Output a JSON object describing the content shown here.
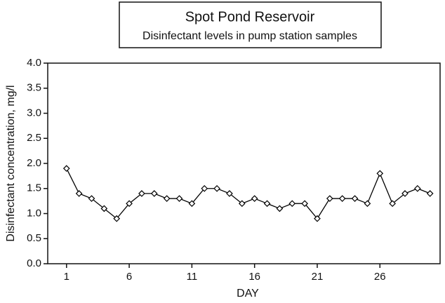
{
  "chart_data": {
    "type": "line",
    "title": "Spot Pond Reservoir",
    "subtitle": "Disinfectant levels in pump station samples",
    "x_label": "DAY",
    "y_label": "Disinfectant concentration, mg/l",
    "x": [
      1,
      2,
      3,
      4,
      5,
      6,
      7,
      8,
      9,
      10,
      11,
      12,
      13,
      14,
      15,
      16,
      17,
      18,
      19,
      20,
      21,
      22,
      23,
      24,
      25,
      26,
      27,
      28,
      29,
      30
    ],
    "series": [
      {
        "color": "#000000",
        "values": [
          1.9,
          1.4,
          1.3,
          1.1,
          0.9,
          1.2,
          1.4,
          1.4,
          1.3,
          1.3,
          1.2,
          1.5,
          1.5,
          1.4,
          1.2,
          1.3,
          1.2,
          1.1,
          1.2,
          1.2,
          0.9,
          1.3,
          1.3,
          1.3,
          1.2,
          1.8,
          1.2,
          1.4,
          1.5,
          1.4
        ]
      }
    ],
    "xlim": [
      -0.5,
      30.8
    ],
    "xticks": [
      1,
      6,
      11,
      16,
      21,
      26
    ],
    "ylim": [
      0,
      4
    ],
    "yticks": [
      {
        "value": 0,
        "label": "0.0"
      },
      0.5,
      {
        "value": 1,
        "label": "1.0"
      },
      1.5,
      {
        "value": 2,
        "label": "2.0"
      },
      2.5,
      {
        "value": 3,
        "label": "3.0"
      },
      3.5,
      {
        "value": 4,
        "label": "4.0"
      }
    ]
  }
}
